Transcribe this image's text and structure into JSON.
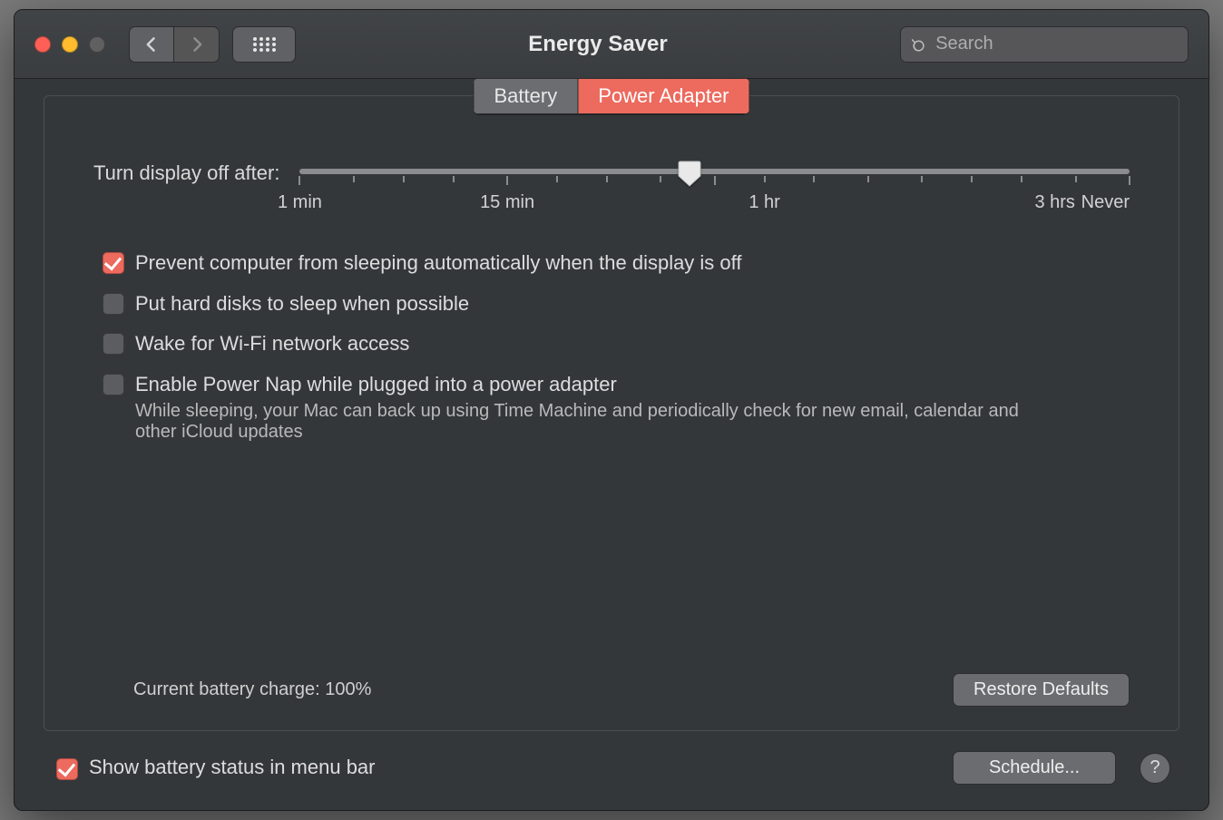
{
  "window": {
    "title": "Energy Saver",
    "search_placeholder": "Search",
    "colors": {
      "window_bg": "#34373a",
      "accent": "#ec6a5e",
      "text": "#dddddd",
      "subtext": "#b9b9b9",
      "toolbar_bg_top": "#414447",
      "toolbar_bg_bot": "#3a3d40",
      "button_bg": "#6a6c6f",
      "checkbox_unchecked_bg": "#5b5d60",
      "panel_border": "#4b4e51",
      "slider_track": "#8a8c8e",
      "traffic_close": "#ff5f57",
      "traffic_min": "#febc2e",
      "traffic_max_disabled": "#606060"
    }
  },
  "tabs": {
    "items": [
      "Battery",
      "Power Adapter"
    ],
    "active_index": 1
  },
  "slider": {
    "label": "Turn display off after:",
    "value_percent": 47,
    "ticks_percent": [
      0,
      6.5,
      12.5,
      18.5,
      25,
      31,
      37,
      43.5,
      50,
      56,
      62,
      68.5,
      75,
      81,
      87,
      93.5,
      100
    ],
    "major_tick_indices": [
      0,
      4,
      8,
      16
    ],
    "tick_labels": [
      {
        "pos": 0,
        "text": "1 min",
        "align": "center"
      },
      {
        "pos": 25,
        "text": "15 min",
        "align": "center"
      },
      {
        "pos": 56,
        "text": "1 hr",
        "align": "center"
      },
      {
        "pos": 91,
        "text": "3 hrs",
        "align": "center"
      },
      {
        "pos": 100,
        "text": "Never",
        "align": "right"
      }
    ]
  },
  "options": [
    {
      "checked": true,
      "label": "Prevent computer from sleeping automatically when the display is off",
      "sub": null
    },
    {
      "checked": false,
      "label": "Put hard disks to sleep when possible",
      "sub": null
    },
    {
      "checked": false,
      "label": "Wake for Wi-Fi network access",
      "sub": null
    },
    {
      "checked": false,
      "label": "Enable Power Nap while plugged into a power adapter",
      "sub": "While sleeping, your Mac can back up using Time Machine and periodically check for new email, calendar and other iCloud updates"
    }
  ],
  "battery_charge_label": "Current battery charge: 100%",
  "buttons": {
    "restore_defaults": "Restore Defaults",
    "schedule": "Schedule...",
    "help": "?"
  },
  "menu_bar_checkbox": {
    "checked": true,
    "label": "Show battery status in menu bar"
  }
}
